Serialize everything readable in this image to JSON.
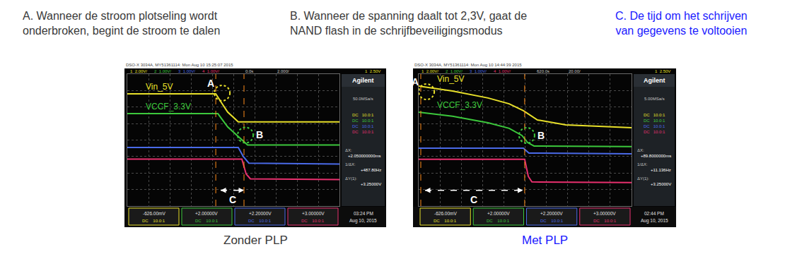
{
  "header": [
    {
      "lines": [
        "A. Wanneer de stroom plotseling wordt",
        "onderbroken, begint de stroom te dalen"
      ]
    },
    {
      "lines": [
        "B. Wanneer de spanning daalt tot 2,3V, gaat de",
        "NAND flash in de schrijfbeveiligingsmodus"
      ]
    },
    {
      "lines": [
        "C. De tijd om het schrijven",
        "van gegevens te voltooien"
      ]
    }
  ],
  "chart_data": [
    {
      "type": "line",
      "title": "Zonder PLP",
      "xlim": [
        0,
        10
      ],
      "ylim": [
        0,
        8
      ],
      "xticks": [
        0,
        1,
        2,
        3,
        4,
        5,
        6,
        7,
        8,
        9,
        10
      ],
      "yticks": [
        0,
        1,
        2,
        3,
        4,
        5,
        6,
        7,
        8
      ],
      "grid": true,
      "tick_labels": false,
      "series": [
        {
          "name": "Vin_5V",
          "color": "#e8e02a",
          "x": [
            0,
            4.17,
            4.47,
            4.73,
            5.23,
            10
          ],
          "values": [
            6.8,
            6.8,
            6.2,
            5.7,
            5.1,
            5.1
          ]
        },
        {
          "name": "VCCF_3.3V",
          "color": "#3cc83c",
          "x": [
            0,
            4.27,
            4.73,
            5.23,
            5.67,
            10
          ],
          "values": [
            5.6,
            5.6,
            4.8,
            4.2,
            3.7,
            3.7
          ]
        },
        {
          "color": "#4a6ae8",
          "x": [
            0,
            5.23,
            5.47,
            5.73,
            10
          ],
          "values": [
            3.55,
            3.55,
            3.0,
            2.6,
            2.55
          ]
        },
        {
          "color": "#e8306e",
          "x": [
            0,
            5.4,
            5.6,
            5.8,
            10
          ],
          "values": [
            2.85,
            2.85,
            1.95,
            1.65,
            1.6
          ]
        }
      ],
      "cursors": [
        4.17,
        5.5
      ],
      "circles": [
        {
          "label": "A",
          "x": 4.47,
          "y": 6.85,
          "color": "#e8e02a"
        },
        {
          "label": "B",
          "x": 5.57,
          "y": 4.3,
          "color": "#3cc83c"
        }
      ],
      "interval": {
        "label": "C",
        "from": 4.4,
        "to": 5.5,
        "y": 0.95
      },
      "scope": {
        "model": "DSO-X 3034A, MY51361114: Mon Aug 10 15:25:07 2015",
        "channels": [
          "1  2.00V/",
          "2  1.00V/",
          "3  1.00V/",
          "4  1.00V/"
        ],
        "timebase": [
          "0.0s",
          "2.000/"
        ],
        "trigger": "1  2.50V",
        "brand": "Agilent",
        "sample_rate": "50.0MSa/s",
        "coupling": "DC",
        "probe": "10.0:1",
        "measurements": [
          {
            "label": "ΔX:",
            "value": "+2.050000000ms"
          },
          {
            "label": "1/ΔX:",
            "value": "+487.80Hz"
          },
          {
            "label": "ΔY(1):",
            "value": "+3.25000V"
          }
        ],
        "levels": [
          "-626.00mV",
          "+2.00000V",
          "+2.20000V",
          "+3.00000V"
        ],
        "time": "03:24 PM",
        "date": "Aug 10, 2015"
      }
    },
    {
      "type": "line",
      "title": "Met PLP",
      "xlim": [
        0,
        10
      ],
      "ylim": [
        0,
        8
      ],
      "xticks": [
        0,
        1,
        2,
        3,
        4,
        5,
        6,
        7,
        8,
        9,
        10
      ],
      "yticks": [
        0,
        1,
        2,
        3,
        4,
        5,
        6,
        7,
        8
      ],
      "grid": true,
      "tick_labels": false,
      "series": [
        {
          "name": "Vin_5V",
          "color": "#e8e02a",
          "x": [
            0,
            1.59,
            3.26,
            4.25,
            4.92,
            5.58,
            6.91,
            10
          ],
          "values": [
            7.27,
            6.97,
            6.55,
            6.2,
            5.78,
            5.22,
            4.92,
            4.75
          ]
        },
        {
          "name": "VCCF_3.3V",
          "color": "#3cc83c",
          "x": [
            0,
            1.59,
            3.26,
            4.25,
            4.85,
            5.12,
            5.42,
            10
          ],
          "values": [
            5.69,
            5.44,
            5.05,
            4.71,
            4.28,
            3.85,
            3.64,
            3.6
          ]
        },
        {
          "color": "#4a6ae8",
          "x": [
            0,
            4.92,
            5.18,
            10
          ],
          "values": [
            3.51,
            3.51,
            3.21,
            3.17
          ]
        },
        {
          "color": "#e8306e",
          "x": [
            0,
            4.98,
            5.15,
            5.32,
            10
          ],
          "values": [
            2.83,
            2.83,
            1.8,
            1.46,
            1.42
          ]
        }
      ],
      "cursors": [
        0.1,
        4.98
      ],
      "circles": [
        {
          "label": "A",
          "x": 0.37,
          "y": 6.93,
          "color": "#e8e02a"
        },
        {
          "label": "B",
          "x": 5.08,
          "y": 4.28,
          "color": "#3cc83c"
        }
      ],
      "interval": {
        "label": "C",
        "from": 0.3,
        "to": 4.9,
        "y": 0.95
      },
      "scope": {
        "model": "DSO-X 3034A, MY51361114: Mon Aug 10 14:44:39 2015",
        "channels": [
          "1  2.00V/",
          "2  1.00V/",
          "3  1.00V/",
          "4  1.00V/"
        ],
        "timebase": [
          "620.0s",
          "20.00/"
        ],
        "trigger": "1  2.50V",
        "brand": "Agilent",
        "sample_rate": "5.00MSa/s",
        "coupling": "DC",
        "probe": "10.0:1",
        "measurements": [
          {
            "label": "ΔX:",
            "value": "+89.8000000ms"
          },
          {
            "label": "1/ΔX:",
            "value": "+11.136Hz"
          },
          {
            "label": "ΔY(1):",
            "value": "+3.25000V"
          }
        ],
        "levels": [
          "-626.00mV",
          "+2.00000V",
          "+2.20000V",
          "+3.00000V"
        ],
        "time": "02:44 PM",
        "date": "Aug 10, 2015"
      }
    }
  ]
}
